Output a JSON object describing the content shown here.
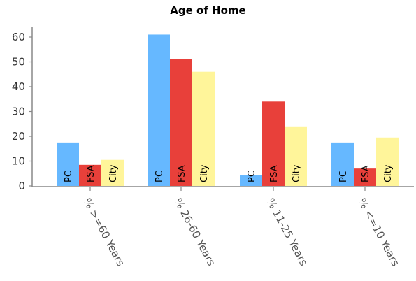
{
  "chart_data": {
    "type": "bar",
    "title": "Age of Home",
    "xlabel": "",
    "ylabel": "",
    "categories": [
      "% >=60 Years",
      "% 26-60 Years",
      "% 11-25 Years",
      "% <=10 Years"
    ],
    "series": [
      {
        "name": "PC",
        "color": "#66b8ff",
        "values": [
          17.5,
          61,
          4.5,
          17.5
        ]
      },
      {
        "name": "FSA",
        "color": "#e8403a",
        "values": [
          8.5,
          51,
          34,
          7
        ]
      },
      {
        "name": "City",
        "color": "#fff59a",
        "values": [
          10.5,
          46,
          24,
          19.5
        ]
      }
    ],
    "ylim": [
      0,
      65
    ],
    "yticks": [
      0,
      10,
      20,
      30,
      40,
      50,
      60
    ],
    "grid": false,
    "legend": "none; series names printed inside bars"
  }
}
